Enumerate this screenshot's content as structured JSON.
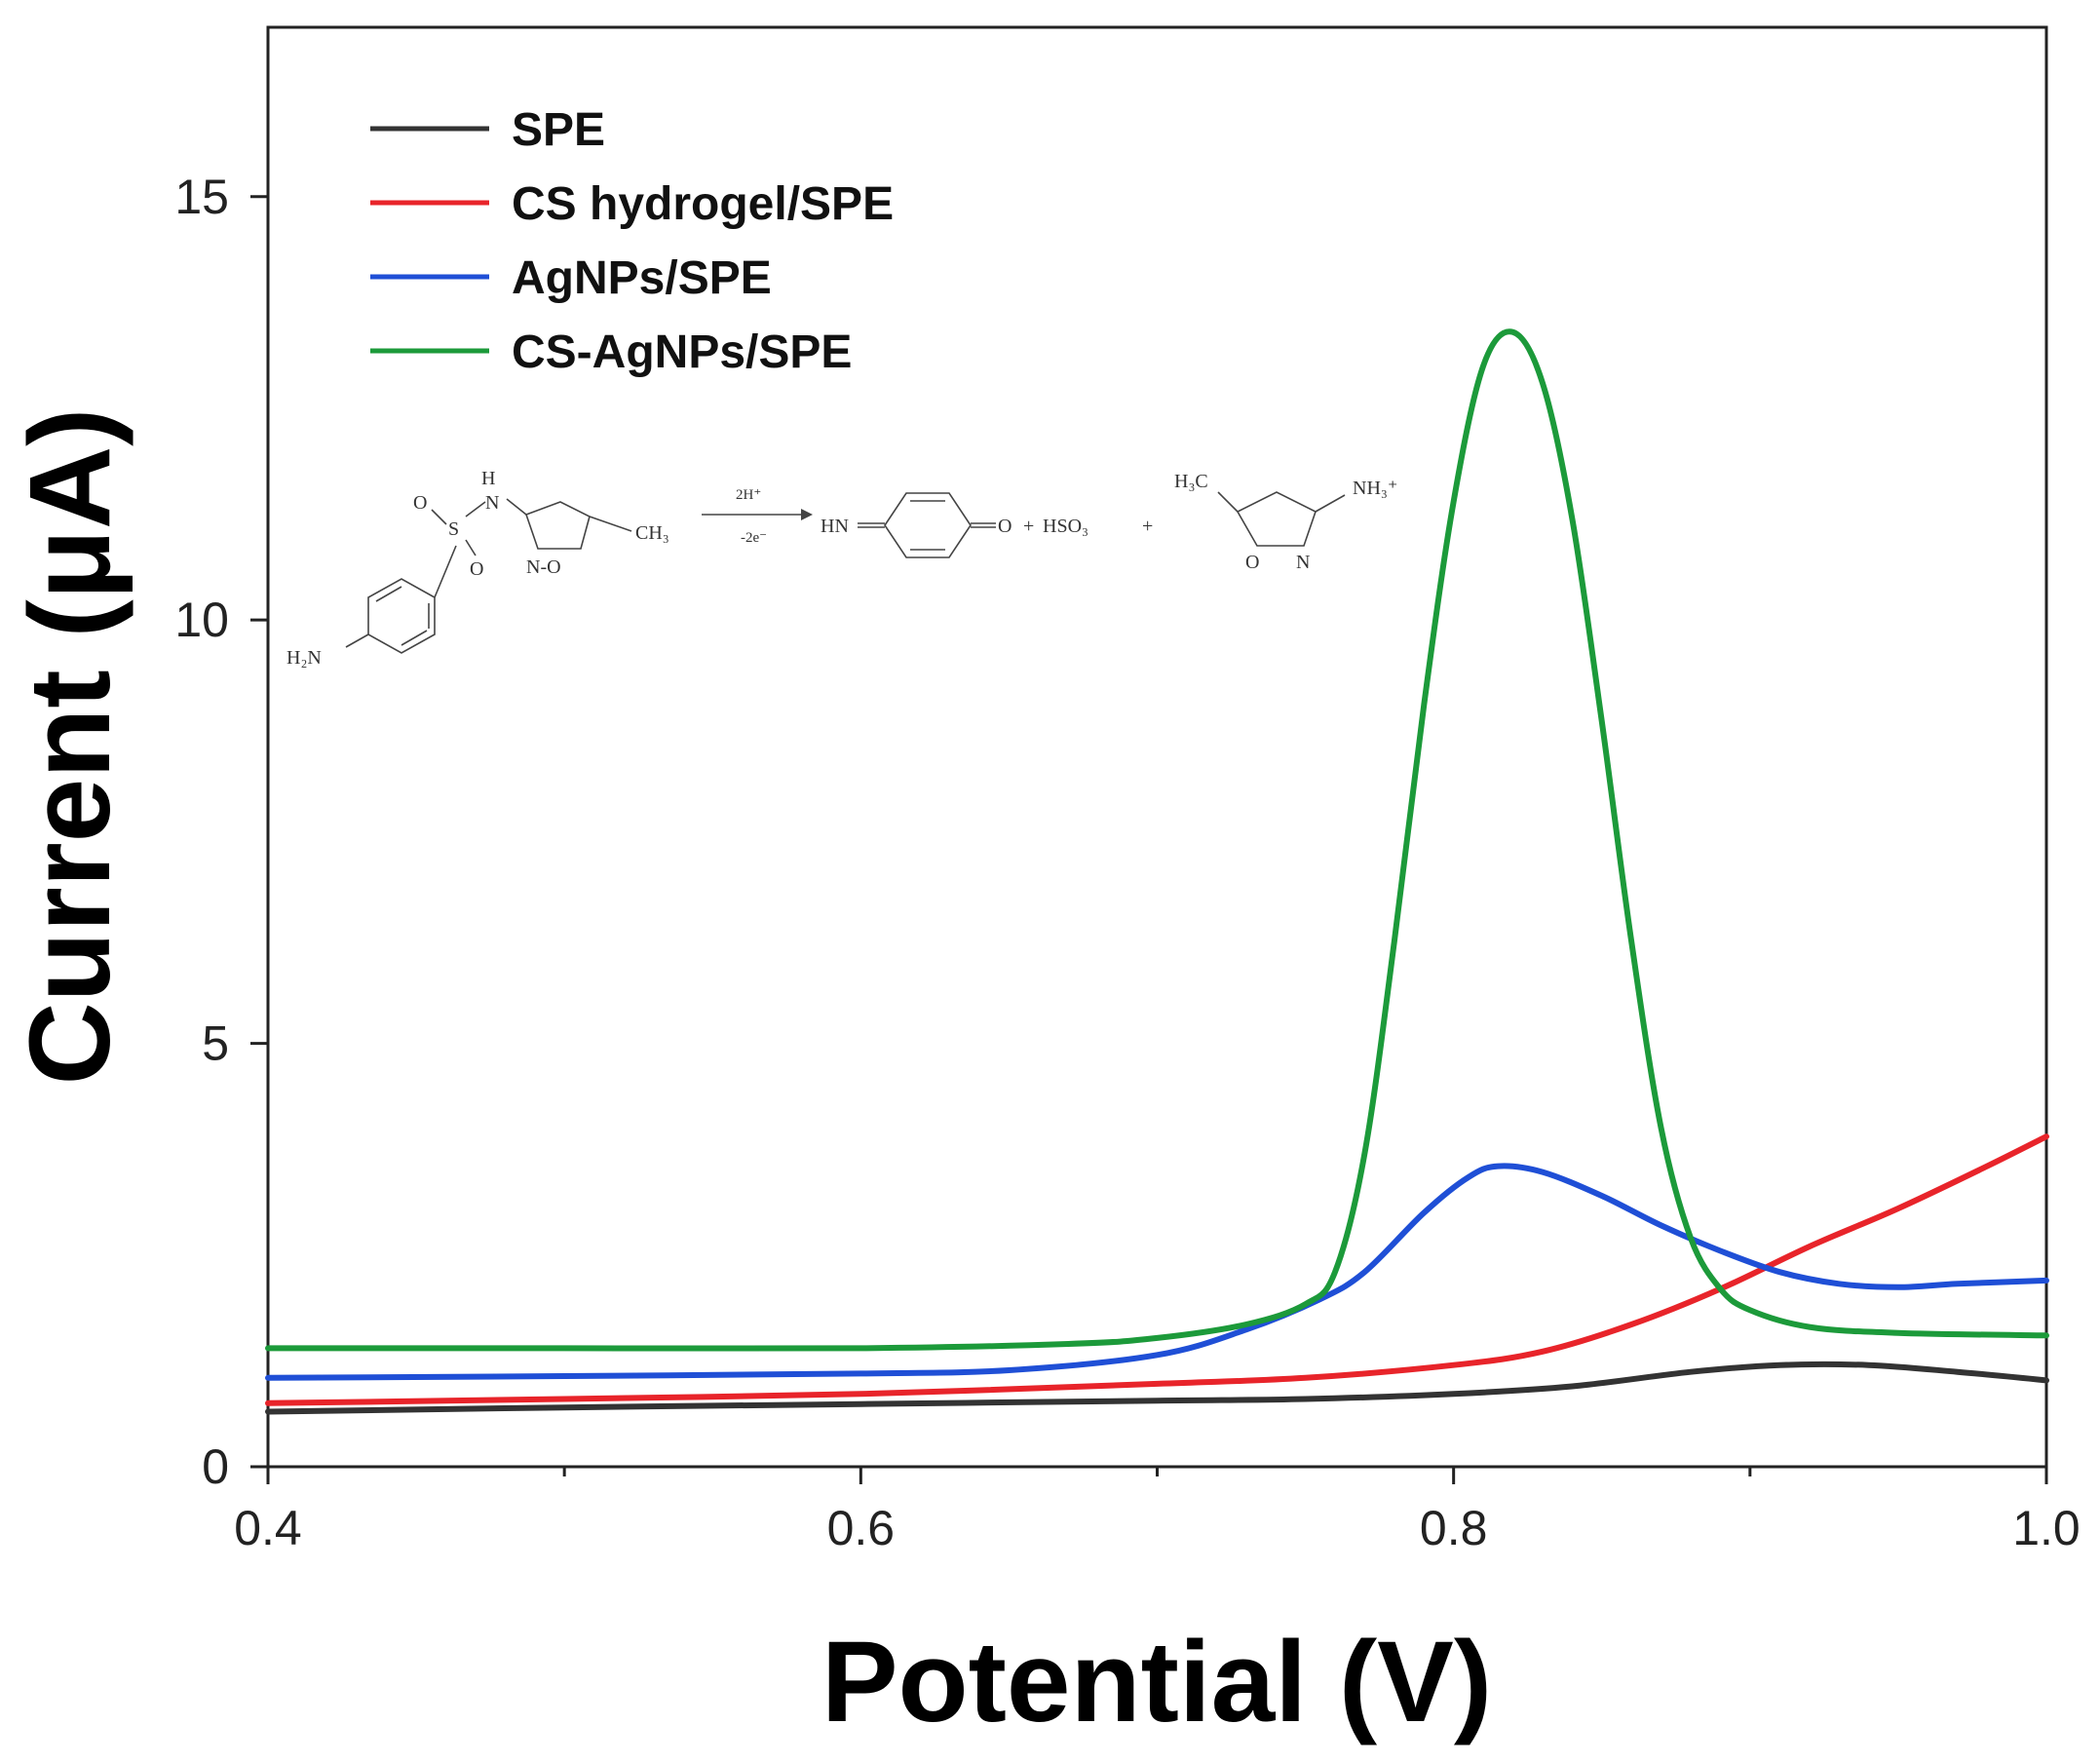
{
  "chart_data": {
    "type": "line",
    "xlabel": "Potential (V)",
    "ylabel": "Current (μA)",
    "xlim": [
      0.4,
      1.0
    ],
    "ylim": [
      0,
      17
    ],
    "x_ticks": [
      0.4,
      0.6,
      0.8,
      1.0
    ],
    "x_tick_labels": [
      "0.4",
      "0.6",
      "0.8",
      "1.0"
    ],
    "x_minor_ticks": [
      0.5,
      0.7,
      0.9
    ],
    "y_ticks": [
      0,
      5,
      10,
      15
    ],
    "y_tick_labels": [
      "0",
      "5",
      "10",
      "15"
    ],
    "grid": false,
    "legend_position": "top-left",
    "series": [
      {
        "name": "SPE",
        "color": "#333333",
        "points": [
          [
            0.4,
            0.65
          ],
          [
            0.5,
            0.7
          ],
          [
            0.6,
            0.74
          ],
          [
            0.7,
            0.78
          ],
          [
            0.75,
            0.8
          ],
          [
            0.8,
            0.86
          ],
          [
            0.84,
            0.95
          ],
          [
            0.88,
            1.12
          ],
          [
            0.91,
            1.2
          ],
          [
            0.94,
            1.2
          ],
          [
            0.97,
            1.12
          ],
          [
            1.0,
            1.02
          ]
        ]
      },
      {
        "name": "CS hydrogel/SPE",
        "color": "#e8242a",
        "points": [
          [
            0.4,
            0.75
          ],
          [
            0.5,
            0.8
          ],
          [
            0.6,
            0.86
          ],
          [
            0.7,
            0.98
          ],
          [
            0.75,
            1.05
          ],
          [
            0.8,
            1.2
          ],
          [
            0.83,
            1.36
          ],
          [
            0.86,
            1.68
          ],
          [
            0.89,
            2.1
          ],
          [
            0.92,
            2.6
          ],
          [
            0.95,
            3.05
          ],
          [
            0.98,
            3.55
          ],
          [
            1.0,
            3.9
          ]
        ]
      },
      {
        "name": "AgNPs/SPE",
        "color": "#1f4fd6",
        "points": [
          [
            0.4,
            1.05
          ],
          [
            0.5,
            1.07
          ],
          [
            0.6,
            1.1
          ],
          [
            0.65,
            1.14
          ],
          [
            0.7,
            1.32
          ],
          [
            0.73,
            1.62
          ],
          [
            0.755,
            1.98
          ],
          [
            0.77,
            2.3
          ],
          [
            0.79,
            3.0
          ],
          [
            0.805,
            3.42
          ],
          [
            0.815,
            3.55
          ],
          [
            0.83,
            3.48
          ],
          [
            0.85,
            3.2
          ],
          [
            0.87,
            2.85
          ],
          [
            0.89,
            2.55
          ],
          [
            0.91,
            2.3
          ],
          [
            0.93,
            2.16
          ],
          [
            0.95,
            2.12
          ],
          [
            0.97,
            2.16
          ],
          [
            1.0,
            2.2
          ]
        ]
      },
      {
        "name": "CS-AgNPs/SPE",
        "color": "#1c9a3a",
        "points": [
          [
            0.4,
            1.4
          ],
          [
            0.5,
            1.4
          ],
          [
            0.6,
            1.4
          ],
          [
            0.67,
            1.45
          ],
          [
            0.7,
            1.52
          ],
          [
            0.73,
            1.68
          ],
          [
            0.75,
            1.92
          ],
          [
            0.76,
            2.3
          ],
          [
            0.77,
            3.7
          ],
          [
            0.78,
            6.2
          ],
          [
            0.79,
            9.0
          ],
          [
            0.8,
            11.4
          ],
          [
            0.81,
            13.0
          ],
          [
            0.82,
            13.4
          ],
          [
            0.83,
            12.8
          ],
          [
            0.84,
            11.2
          ],
          [
            0.85,
            8.8
          ],
          [
            0.86,
            6.2
          ],
          [
            0.87,
            4.0
          ],
          [
            0.88,
            2.7
          ],
          [
            0.89,
            2.1
          ],
          [
            0.9,
            1.85
          ],
          [
            0.92,
            1.65
          ],
          [
            0.95,
            1.58
          ],
          [
            1.0,
            1.55
          ]
        ]
      }
    ],
    "annotations": {
      "reaction": {
        "reactant": [
          "H",
          "N",
          "S",
          "O",
          "O",
          "N-O",
          "CH₃",
          "H₂N"
        ],
        "arrow_top": "2H⁺",
        "arrow_bottom": "-2e⁻",
        "product1_left": "HN",
        "product1_right": "O",
        "plus1": "+",
        "product2": "HSO₃",
        "plus2": "+",
        "product3": [
          "H₃C",
          "NH₃⁺",
          "O",
          "N"
        ]
      }
    }
  }
}
